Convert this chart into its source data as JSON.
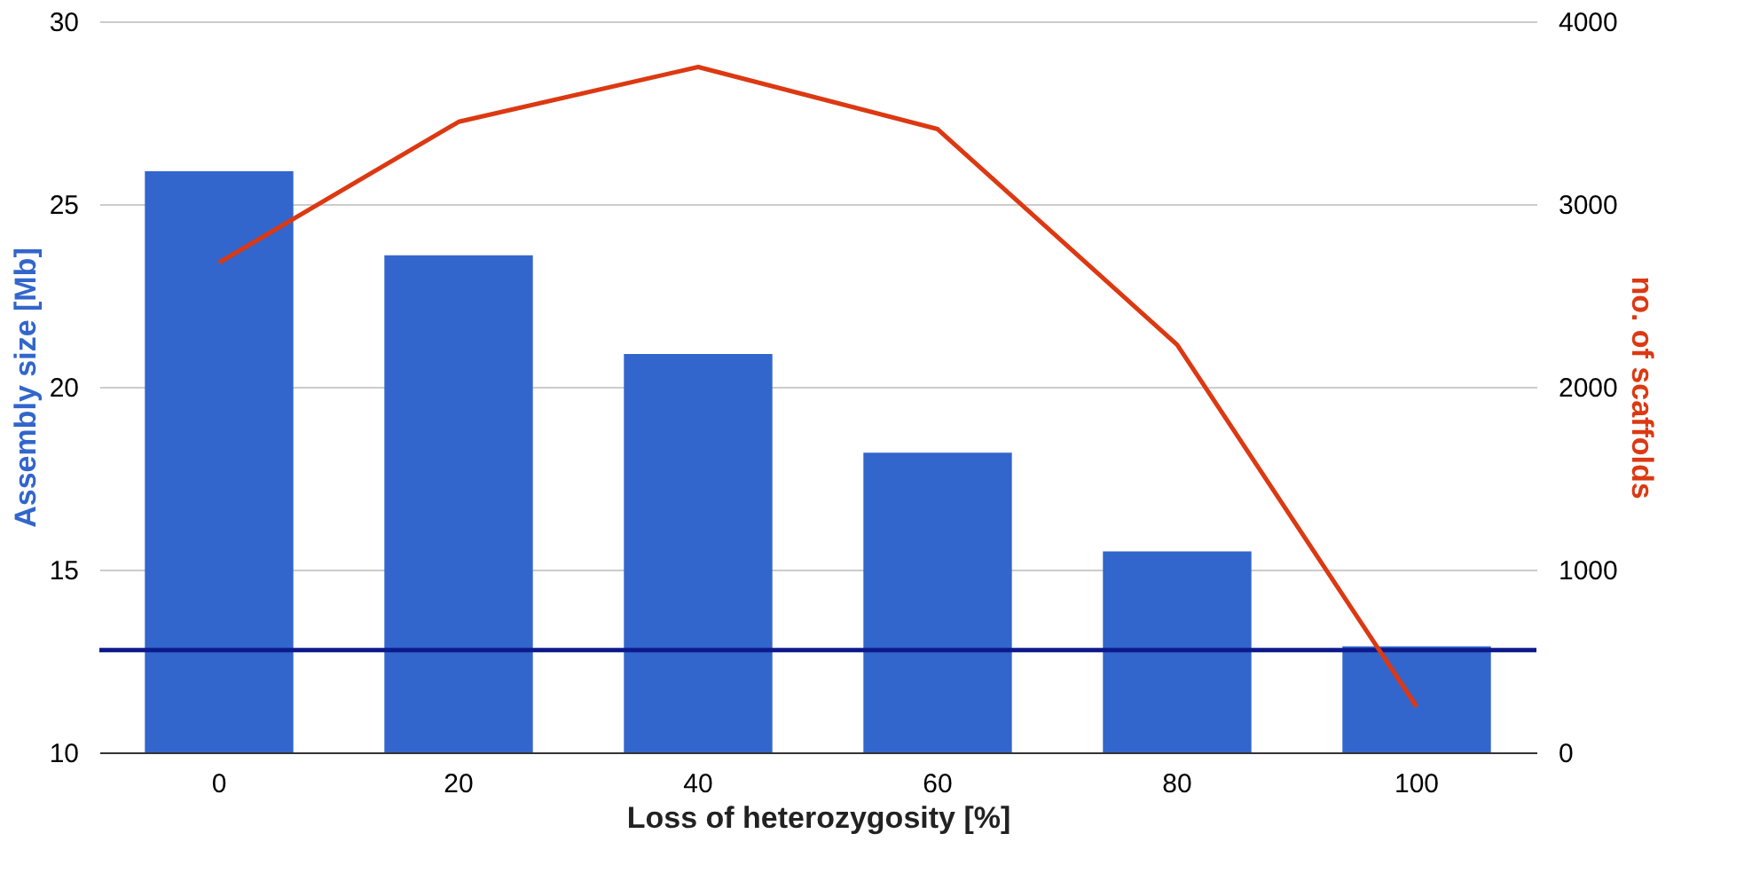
{
  "chart_data": {
    "type": "bar",
    "xlabel": "Loss of heterozygosity [%]",
    "ylabel": "Assembly size [Mb]",
    "y2label": "no. of scaffolds",
    "categories": [
      "0",
      "20",
      "40",
      "60",
      "80",
      "100"
    ],
    "series": [
      {
        "color": "#3366cc",
        "values": [
          25.9,
          23.6,
          20.9,
          18.2,
          15.5,
          12.9
        ]
      },
      {
        "type": "line",
        "axis": "y2",
        "color": "#dc3912",
        "values": [
          2680,
          3450,
          3750,
          3410,
          2230,
          250
        ]
      }
    ],
    "ylim": [
      10,
      30
    ],
    "yticks": [
      10,
      15,
      20,
      25,
      30
    ],
    "y2lim": [
      0,
      4000
    ],
    "y2ticks": [
      0,
      1000,
      2000,
      3000,
      4000
    ],
    "ref_lines": [
      {
        "axis": "y",
        "value": 12.8,
        "color": "#0d1a8c"
      }
    ],
    "grid": "y",
    "marker": "none"
  }
}
